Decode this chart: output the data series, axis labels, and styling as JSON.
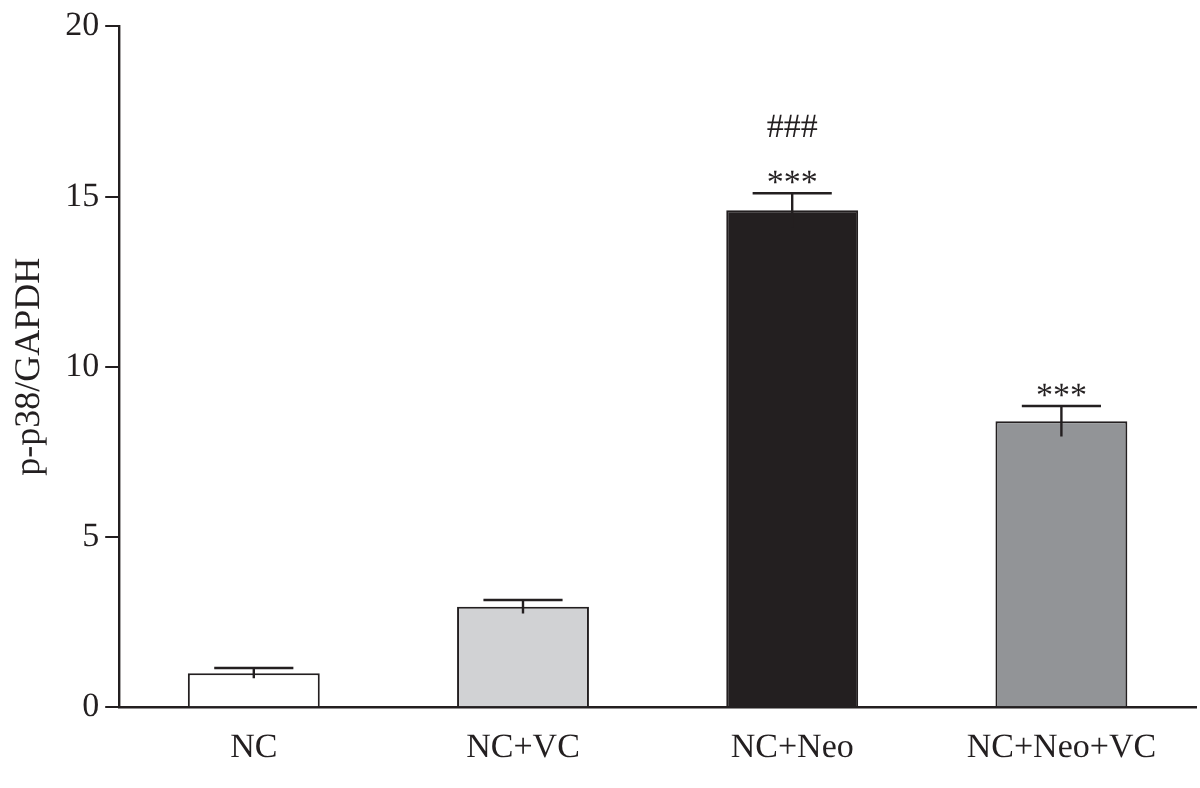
{
  "chart_data": {
    "type": "bar",
    "ylabel": "p-p38/GAPDH",
    "categories": [
      "NC",
      "NC+VC",
      "NC+Neo",
      "NC+Neo+VC"
    ],
    "values": [
      1.0,
      2.95,
      14.6,
      8.4
    ],
    "errors": [
      0.15,
      0.2,
      0.5,
      0.45
    ],
    "colors": [
      "#ffffff",
      "#d1d2d4",
      "#231f20",
      "#929497"
    ],
    "value_labels": [
      null,
      null,
      "***",
      "***"
    ],
    "annotations": [
      "###"
    ],
    "ylim": [
      0,
      20
    ],
    "yticks": [
      0,
      5,
      10,
      15,
      20
    ],
    "grid": false,
    "legend": false
  }
}
